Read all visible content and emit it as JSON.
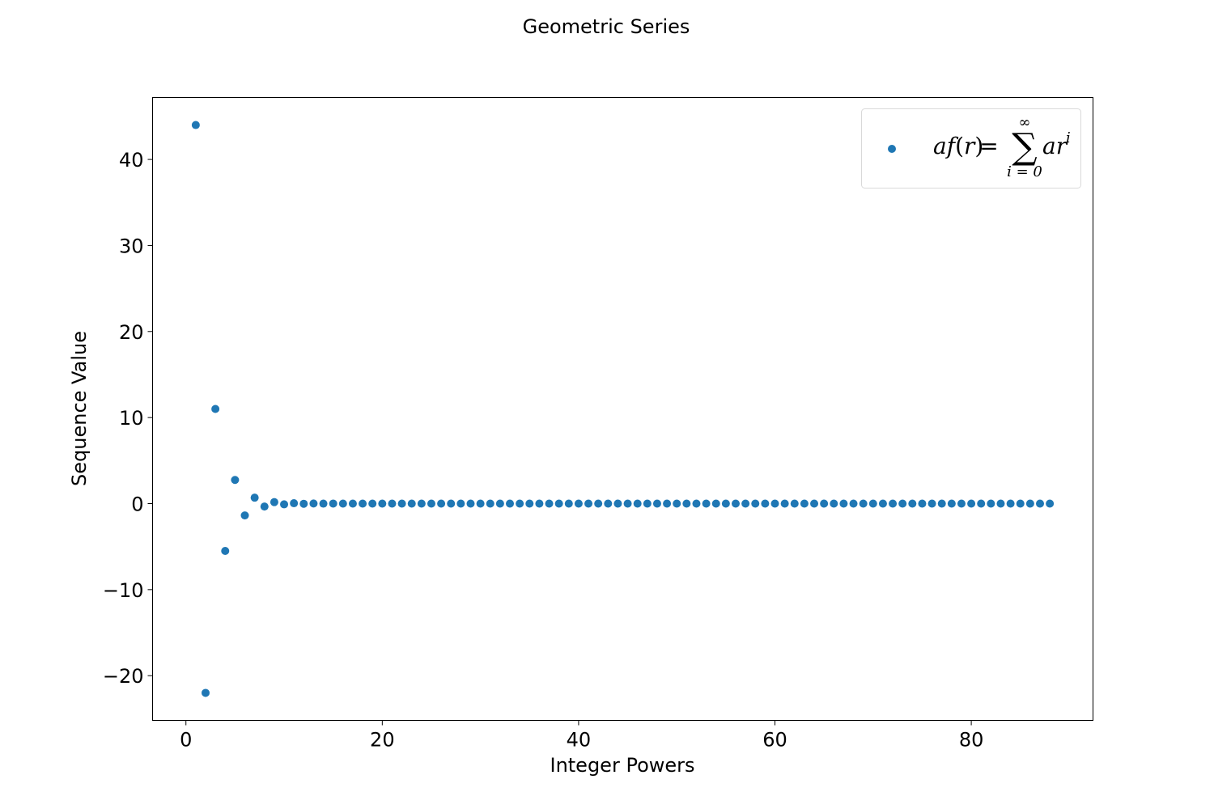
{
  "chart_data": {
    "type": "scatter",
    "title": "Geometric Series",
    "xlabel": "Integer Powers",
    "ylabel": "Sequence Value",
    "xlim": [
      -3.4,
      92.4
    ],
    "ylim": [
      -25.2,
      47.2
    ],
    "xticks": [
      0,
      20,
      40,
      60,
      80
    ],
    "xtick_labels": [
      "0",
      "20",
      "40",
      "60",
      "80"
    ],
    "yticks": [
      -20,
      -10,
      0,
      10,
      20,
      30,
      40
    ],
    "ytick_labels": [
      "−20",
      "−10",
      "0",
      "10",
      "20",
      "30",
      "40"
    ],
    "grid": false,
    "legend_position": "top-right",
    "series": [
      {
        "name": "af(r) = ∑ ar^i",
        "legend": {
          "lhs_a": "a",
          "lhs_f": "f",
          "lhs_open": "(",
          "lhs_r": "r",
          "lhs_close": ")",
          "eq": "=",
          "sigma": "∑",
          "upper": "∞",
          "lower": "i = 0",
          "rhs": "ar",
          "exp": "i"
        },
        "color": "#1f77b4",
        "x_range": [
          1,
          88
        ],
        "first_term": 44,
        "ratio": -0.5
      }
    ]
  }
}
